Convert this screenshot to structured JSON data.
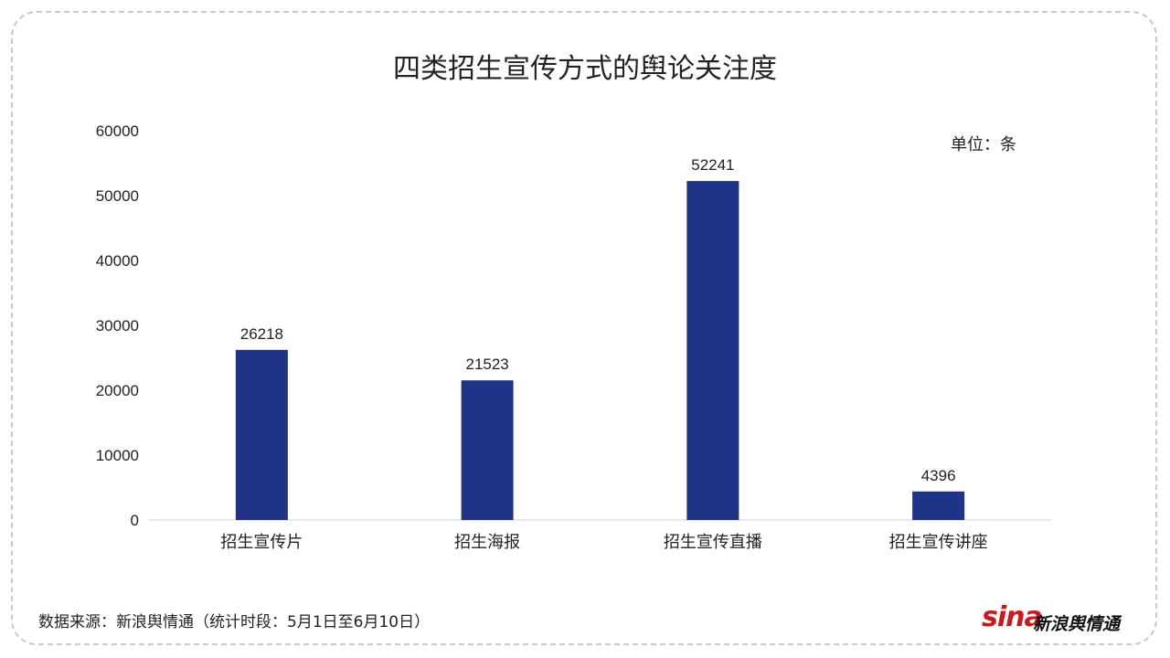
{
  "chart_data": {
    "type": "bar",
    "title": "四类招生宣传方式的舆论关注度",
    "unit_label": "单位：条",
    "categories": [
      "招生宣传片",
      "招生海报",
      "招生宣传直播",
      "招生宣传讲座"
    ],
    "values": [
      26218,
      21523,
      52241,
      4396
    ],
    "data_labels": [
      "26218",
      "21523",
      "52241",
      "4396"
    ],
    "y_ticks": [
      "0",
      "10000",
      "20000",
      "30000",
      "40000",
      "50000",
      "60000"
    ],
    "ylim": [
      0,
      60000
    ],
    "bar_color": "#1f3387",
    "grid": false,
    "legend": "none"
  },
  "footer": {
    "source": "数据来源：新浪舆情通（统计时段：5月1日至6月10日）"
  },
  "logo": {
    "sina": "sina",
    "name": "新浪舆情通"
  }
}
